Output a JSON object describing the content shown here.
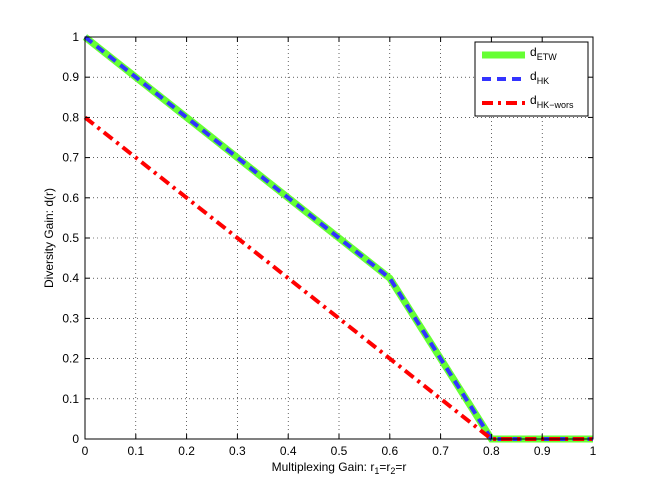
{
  "chart_data": {
    "type": "line",
    "xlabel": "Multiplexing Gain: r",
    "xlabel_parts": {
      "main": "Multiplexing Gain: r",
      "sub1": "1",
      "eq1": "=r",
      "sub2": "2",
      "eq2": "=r"
    },
    "ylabel": "Diversity Gain: d(r)",
    "xlim": [
      0,
      1
    ],
    "ylim": [
      0,
      1
    ],
    "xticks": [
      0,
      0.1,
      0.2,
      0.3,
      0.4,
      0.5,
      0.6,
      0.7,
      0.8,
      0.9,
      1
    ],
    "yticks": [
      0,
      0.1,
      0.2,
      0.3,
      0.4,
      0.5,
      0.6,
      0.7,
      0.8,
      0.9,
      1
    ],
    "xtick_labels": [
      "0",
      "0.1",
      "0.2",
      "0.3",
      "0.4",
      "0.5",
      "0.6",
      "0.7",
      "0.8",
      "0.9",
      "1"
    ],
    "ytick_labels": [
      "0",
      "0.1",
      "0.2",
      "0.3",
      "0.4",
      "0.5",
      "0.6",
      "0.7",
      "0.8",
      "0.9",
      "1"
    ],
    "grid": true,
    "legend_position": "top-right",
    "series": [
      {
        "name": "d_ETW",
        "legend_main": "d",
        "legend_sub": "ETW",
        "color": "#66ff33",
        "style": "solid",
        "x": [
          0,
          0.6,
          0.8,
          1
        ],
        "y": [
          1,
          0.4,
          0,
          0
        ]
      },
      {
        "name": "d_HK",
        "legend_main": "d",
        "legend_sub": "HK",
        "color": "#3333ff",
        "style": "dashed",
        "x": [
          0,
          0.6,
          0.8,
          1
        ],
        "y": [
          1,
          0.4,
          0,
          0
        ]
      },
      {
        "name": "d_HK-wors",
        "legend_main": "d",
        "legend_sub": "HK−wors",
        "color": "#ff0000",
        "style": "dashdot",
        "x": [
          0,
          0.8,
          1
        ],
        "y": [
          0.8,
          0,
          0
        ]
      }
    ]
  }
}
